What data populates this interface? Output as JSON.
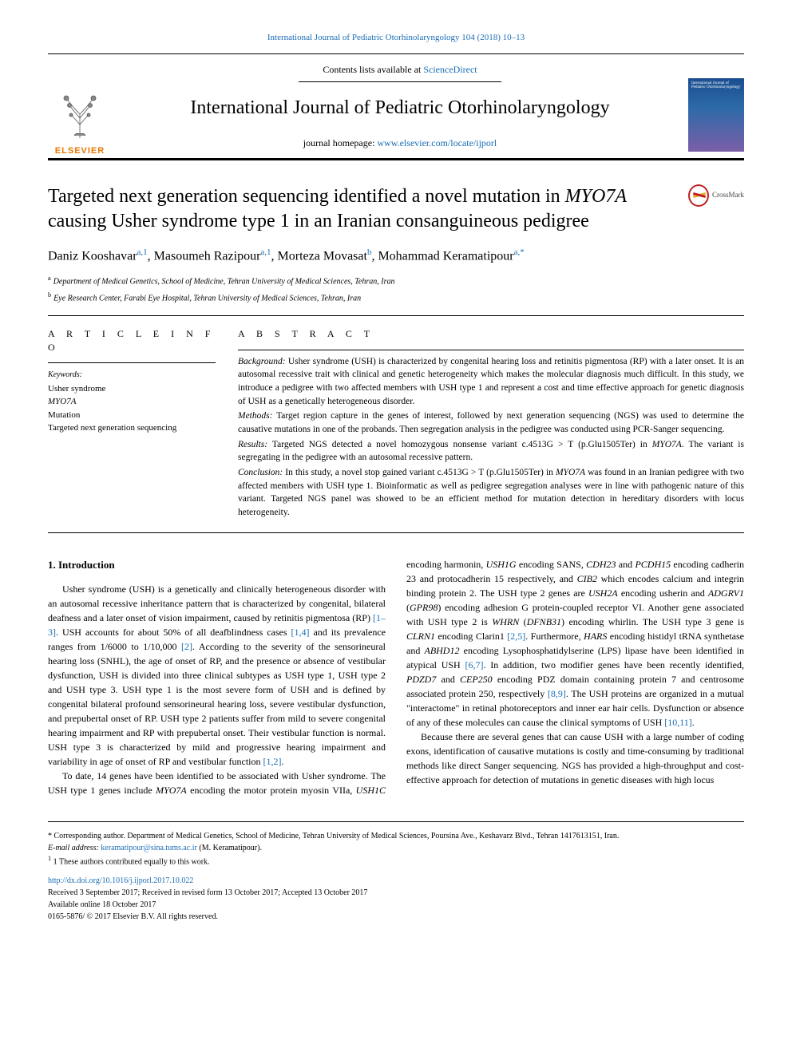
{
  "top_link": {
    "prefix": "",
    "journal": "International Journal of Pediatric Otorhinolaryngology 104 (2018) 10–13"
  },
  "header": {
    "contents_prefix": "Contents lists available at ",
    "contents_link": "ScienceDirect",
    "journal_name": "International Journal of Pediatric Otorhinolaryngology",
    "homepage_prefix": "journal homepage: ",
    "homepage_url": "www.elsevier.com/locate/ijporl",
    "elsevier_label": "ELSEVIER",
    "cover_text": "International Journal of Pediatric Otorhinolaryngology"
  },
  "crossmark": {
    "label": "CrossMark"
  },
  "title": {
    "line1_pre": "Targeted next generation sequencing identified a novel mutation in ",
    "line1_italic": "MYO7A",
    "line2": "causing Usher syndrome type 1 in an Iranian consanguineous pedigree"
  },
  "authors_html": "Daniz Kooshavar<sup><a>a</a>,<a>1</a></sup>, Masoumeh Razipour<sup><a>a</a>,<a>1</a></sup>, Morteza Movasat<sup><a>b</a></sup>, Mohammad Keramatipour<sup><a>a</a>,<a>*</a></sup>",
  "affiliations": [
    {
      "sup": "a",
      "text": "Department of Medical Genetics, School of Medicine, Tehran University of Medical Sciences, Tehran, Iran"
    },
    {
      "sup": "b",
      "text": "Eye Research Center, Farabi Eye Hospital, Tehran University of Medical Sciences, Tehran, Iran"
    }
  ],
  "article_info": {
    "header": "A R T I C L E  I N F O",
    "keywords_label": "Keywords:",
    "keywords": [
      "Usher syndrome",
      "<span class=\"italic\">MYO7A</span>",
      "Mutation",
      "Targeted next generation sequencing"
    ]
  },
  "abstract": {
    "header": "A B S T R A C T",
    "paragraphs": [
      {
        "label": "Background:",
        "text": " Usher syndrome (USH) is characterized by congenital hearing loss and retinitis pigmentosa (RP) with a later onset. It is an autosomal recessive trait with clinical and genetic heterogeneity which makes the molecular diagnosis much difficult. In this study, we introduce a pedigree with two affected members with USH type 1 and represent a cost and time effective approach for genetic diagnosis of USH as a genetically heterogeneous disorder."
      },
      {
        "label": "Methods:",
        "text": " Target region capture in the genes of interest, followed by next generation sequencing (NGS) was used to determine the causative mutations in one of the probands. Then segregation analysis in the pedigree was conducted using PCR-Sanger sequencing."
      },
      {
        "label": "Results:",
        "text": " Targeted NGS detected a novel homozygous nonsense variant c.4513G > T (p.Glu1505Ter) in <span class=\"italic\">MYO7A</span>. The variant is segregating in the pedigree with an autosomal recessive pattern."
      },
      {
        "label": "Conclusion:",
        "text": " In this study, a novel stop gained variant c.4513G > T (p.Glu1505Ter) in <span class=\"italic\">MYO7A</span> was found in an Iranian pedigree with two affected members with USH type 1. Bioinformatic as well as pedigree segregation analyses were in line with pathogenic nature of this variant. Targeted NGS panel was showed to be an efficient method for mutation detection in hereditary disorders with locus heterogeneity."
      }
    ]
  },
  "introduction": {
    "heading": "1. Introduction",
    "paragraphs": [
      "Usher syndrome (USH) is a genetically and clinically heterogeneous disorder with an autosomal recessive inheritance pattern that is characterized by congenital, bilateral deafness and a later onset of vision impairment, caused by retinitis pigmentosa (RP) <a>[1–3]</a>. USH accounts for about 50% of all deafblindness cases <a>[1,4]</a> and its prevalence ranges from 1/6000 to 1/10,000 <a>[2]</a>. According to the severity of the sensorineural hearing loss (SNHL), the age of onset of RP, and the presence or absence of vestibular dysfunction, USH is divided into three clinical subtypes as USH type 1, USH type 2 and USH type 3. USH type 1 is the most severe form of USH and is defined by congenital bilateral profound sensorineural hearing loss, severe vestibular dysfunction, and prepubertal onset of RP. USH type 2 patients suffer from mild to severe congenital hearing impairment and RP with prepubertal onset. Their vestibular function is normal. USH type 3 is characterized by mild and progressive hearing impairment and variability in age of onset of RP and vestibular function <a>[1,2]</a>.",
      "To date, 14 genes have been identified to be associated with Usher syndrome. The USH type 1 genes include <span class=\"italic\">MYO7A</span> encoding the motor protein myosin VIIa, <span class=\"italic\">USH1C</span> encoding harmonin, <span class=\"italic\">USH1G</span> encoding SANS, <span class=\"italic\">CDH23</span> and <span class=\"italic\">PCDH15</span> encoding cadherin 23 and protocadherin 15 respectively, and <span class=\"italic\">CIB2</span> which encodes calcium and integrin binding protein 2. The USH type 2 genes are <span class=\"italic\">USH2A</span> encoding usherin and <span class=\"italic\">ADGRV1</span> (<span class=\"italic\">GPR98</span>) encoding adhesion G protein-coupled receptor VI. Another gene associated with USH type 2 is <span class=\"italic\">WHRN</span> (<span class=\"italic\">DFNB31</span>) encoding whirlin. The USH type 3 gene is <span class=\"italic\">CLRN1</span> encoding Clarin1 <a>[2,5]</a>. Furthermore, <span class=\"italic\">HARS</span> encoding histidyl tRNA synthetase and <span class=\"italic\">ABHD12</span> encoding Lysophosphatidylserine (LPS) lipase have been identified in atypical USH <a>[6,7]</a>. In addition, two modifier genes have been recently identified, <span class=\"italic\">PDZD7</span> and <span class=\"italic\">CEP250</span> encoding PDZ domain containing protein 7 and centrosome associated protein 250, respectively <a>[8,9]</a>. The USH proteins are organized in a mutual \"interactome\" in retinal photoreceptors and inner ear hair cells. Dysfunction or absence of any of these molecules can cause the clinical symptoms of USH <a>[10,11]</a>.",
      "Because there are several genes that can cause USH with a large number of coding exons, identification of causative mutations is costly and time-consuming by traditional methods like direct Sanger sequencing. NGS has provided a high-throughput and cost-effective approach for detection of mutations in genetic diseases with high locus"
    ]
  },
  "footer": {
    "corresponding": "* Corresponding author. Department of Medical Genetics, School of Medicine, Tehran University of Medical Sciences, Poursina Ave., Keshavarz Blvd., Tehran 1417613151, Iran.",
    "email_label": "E-mail address: ",
    "email": "keramatipour@sina.tums.ac.ir",
    "email_suffix": " (M. Keramatipour).",
    "equal": "1 These authors contributed equally to this work.",
    "doi": "http://dx.doi.org/10.1016/j.ijporl.2017.10.022",
    "received": "Received 3 September 2017; Received in revised form 13 October 2017; Accepted 13 October 2017",
    "available": "Available online 18 October 2017",
    "copyright": "0165-5876/ © 2017 Elsevier B.V. All rights reserved."
  },
  "colors": {
    "link": "#1a6db5",
    "elsevier_orange": "#e97600",
    "crossmark_red": "#c02020",
    "text": "#000000",
    "background": "#ffffff"
  }
}
